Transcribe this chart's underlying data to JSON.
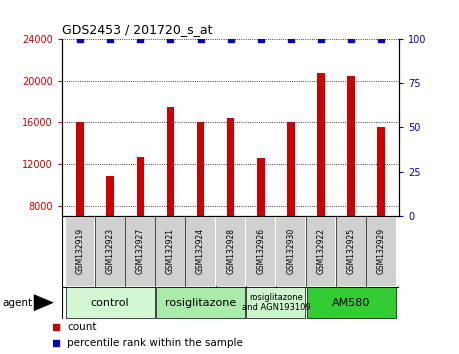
{
  "title": "GDS2453 / 201720_s_at",
  "samples": [
    "GSM132919",
    "GSM132923",
    "GSM132927",
    "GSM132921",
    "GSM132924",
    "GSM132928",
    "GSM132926",
    "GSM132930",
    "GSM132922",
    "GSM132925",
    "GSM132929"
  ],
  "counts": [
    16000,
    10800,
    12700,
    17500,
    16000,
    16400,
    12600,
    16000,
    20700,
    20400,
    15500
  ],
  "percentile": [
    100,
    100,
    100,
    100,
    100,
    100,
    100,
    100,
    100,
    100,
    100
  ],
  "bar_color": "#cc0000",
  "dot_color": "#0000cc",
  "ylim_left": [
    7000,
    24000
  ],
  "ylim_right": [
    0,
    100
  ],
  "yticks_left": [
    8000,
    12000,
    16000,
    20000,
    24000
  ],
  "yticks_right": [
    0,
    25,
    50,
    75,
    100
  ],
  "groups": [
    {
      "label": "control",
      "start": 0,
      "end": 3,
      "color": "#d4f7d4"
    },
    {
      "label": "rosiglitazone",
      "start": 3,
      "end": 6,
      "color": "#aaeaaa"
    },
    {
      "label": "rosiglitazone\nand AGN193109",
      "start": 6,
      "end": 8,
      "color": "#ccf5cc"
    },
    {
      "label": "AM580",
      "start": 8,
      "end": 11,
      "color": "#33cc33"
    }
  ],
  "tick_label_color_left": "#cc0000",
  "tick_label_color_right": "#0000cc",
  "label_box_color": "#d0d0d0",
  "bar_width": 0.25
}
